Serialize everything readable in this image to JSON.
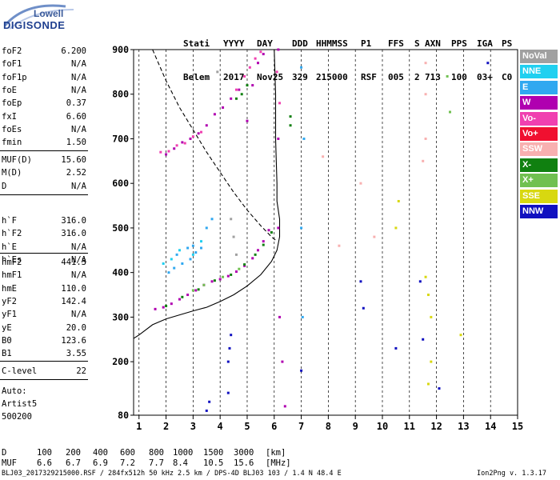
{
  "logo": {
    "line1": "Lowell",
    "line2": "DIGISONDE"
  },
  "header": {
    "row1": [
      "Stati",
      "YYYY",
      "DAY",
      "DDD",
      "HHMMSS",
      "P1",
      "FFS",
      "S",
      "AXN",
      "PPS",
      "IGA",
      "PS"
    ],
    "row2": [
      "Belem",
      "2017",
      "Nov25",
      "329",
      "215000",
      "RSF",
      "005",
      "2",
      "713",
      "100",
      "03+",
      "C0"
    ]
  },
  "params_group1": [
    {
      "key": "foF2",
      "value": "6.200"
    },
    {
      "key": "foF1",
      "value": "N/A"
    },
    {
      "key": "foF1p",
      "value": "N/A"
    },
    {
      "key": "foE",
      "value": "N/A"
    },
    {
      "key": "foEp",
      "value": "0.37"
    },
    {
      "key": "fxI",
      "value": "6.60"
    },
    {
      "key": "foEs",
      "value": "N/A"
    },
    {
      "key": "fmin",
      "value": "1.50"
    }
  ],
  "params_group2": [
    {
      "key": "MUF(D)",
      "value": "15.60"
    },
    {
      "key": "M(D)",
      "value": "2.52"
    },
    {
      "key": "D",
      "value": "N/A"
    }
  ],
  "params_group3": [
    {
      "key": "h`F",
      "value": "316.0"
    },
    {
      "key": "h`F2",
      "value": "316.0"
    },
    {
      "key": "h`E",
      "value": "N/A"
    },
    {
      "key": "h`Es",
      "value": "N/A"
    }
  ],
  "params_group4": [
    {
      "key": "hmF2",
      "value": "441.3"
    },
    {
      "key": "hmF1",
      "value": "N/A"
    },
    {
      "key": "hmE",
      "value": "110.0"
    },
    {
      "key": "yF2",
      "value": "142.4"
    },
    {
      "key": "yF1",
      "value": "N/A"
    },
    {
      "key": "yE",
      "value": "20.0"
    },
    {
      "key": "B0",
      "value": "123.6"
    },
    {
      "key": "B1",
      "value": "3.55"
    }
  ],
  "params_group5": [
    {
      "key": "C-level",
      "value": "22"
    }
  ],
  "auto": {
    "line1": "Auto:",
    "line2": "Artist5",
    "line3": "500200"
  },
  "legend": [
    {
      "label": "NoVal",
      "color": "#a0a0a0"
    },
    {
      "label": "NNE",
      "color": "#20d0f0"
    },
    {
      "label": "E",
      "color": "#30a8f0"
    },
    {
      "label": "W",
      "color": "#b000b0"
    },
    {
      "label": "Vo-",
      "color": "#f040b0"
    },
    {
      "label": "Vo+",
      "color": "#f01030"
    },
    {
      "label": "SSW",
      "color": "#f8b0b0"
    },
    {
      "label": "X-",
      "color": "#108010"
    },
    {
      "label": "X+",
      "color": "#70c050"
    },
    {
      "label": "SSE",
      "color": "#d8d810"
    },
    {
      "label": "NNW",
      "color": "#1010c0"
    }
  ],
  "chart_data": {
    "type": "scatter",
    "xlim": [
      0.8,
      15
    ],
    "ylim": [
      80,
      900
    ],
    "x_ticks": [
      1,
      2,
      3,
      4,
      5,
      6,
      7,
      8,
      9,
      10,
      11,
      12,
      13,
      14,
      15
    ],
    "y_ticks": [
      80,
      200,
      300,
      400,
      500,
      600,
      700,
      800,
      900
    ],
    "grid": "dashed vertical lines",
    "series": [
      {
        "color": "#b000b0",
        "points": [
          [
            1.6,
            318
          ],
          [
            1.9,
            322
          ],
          [
            2.2,
            330
          ],
          [
            2.5,
            340
          ],
          [
            2.8,
            350
          ],
          [
            3.1,
            360
          ],
          [
            3.4,
            372
          ],
          [
            3.7,
            380
          ],
          [
            4.0,
            385
          ],
          [
            4.3,
            392
          ],
          [
            4.6,
            402
          ],
          [
            4.9,
            415
          ],
          [
            5.2,
            432
          ],
          [
            5.4,
            450
          ],
          [
            5.6,
            470
          ],
          [
            5.8,
            495
          ],
          [
            5.0,
            740
          ],
          [
            5.2,
            820
          ],
          [
            5.4,
            870
          ],
          [
            5.6,
            890
          ],
          [
            2.0,
            665
          ],
          [
            2.3,
            678
          ],
          [
            2.6,
            692
          ],
          [
            2.9,
            700
          ],
          [
            3.2,
            712
          ],
          [
            3.5,
            730
          ],
          [
            3.8,
            755
          ],
          [
            4.1,
            770
          ],
          [
            4.4,
            790
          ],
          [
            4.7,
            810
          ],
          [
            6.15,
            900
          ],
          [
            6.15,
            700
          ],
          [
            6.15,
            500
          ],
          [
            6.2,
            300
          ],
          [
            6.3,
            200
          ],
          [
            6.4,
            100
          ]
        ]
      },
      {
        "color": "#f040b0",
        "points": [
          [
            1.8,
            670
          ],
          [
            2.1,
            672
          ],
          [
            2.4,
            685
          ],
          [
            2.7,
            690
          ],
          [
            3.0,
            705
          ],
          [
            3.3,
            715
          ],
          [
            4.6,
            810
          ],
          [
            4.9,
            840
          ],
          [
            5.1,
            860
          ],
          [
            5.3,
            880
          ],
          [
            5.5,
            895
          ],
          [
            6.1,
            850
          ],
          [
            6.2,
            780
          ]
        ]
      },
      {
        "color": "#108010",
        "points": [
          [
            2.0,
            325
          ],
          [
            2.6,
            345
          ],
          [
            3.2,
            362
          ],
          [
            3.8,
            382
          ],
          [
            4.4,
            395
          ],
          [
            4.9,
            418
          ],
          [
            5.3,
            440
          ],
          [
            5.6,
            462
          ],
          [
            5.9,
            490
          ],
          [
            4.6,
            790
          ],
          [
            4.8,
            800
          ],
          [
            5.0,
            820
          ],
          [
            6.6,
            750
          ],
          [
            6.6,
            730
          ]
        ]
      },
      {
        "color": "#30a8f0",
        "points": [
          [
            2.1,
            400
          ],
          [
            2.3,
            410
          ],
          [
            2.6,
            420
          ],
          [
            2.9,
            430
          ],
          [
            3.1,
            445
          ],
          [
            3.3,
            455
          ],
          [
            2.4,
            440
          ],
          [
            2.8,
            455
          ],
          [
            3.0,
            460
          ],
          [
            3.5,
            500
          ],
          [
            3.7,
            520
          ],
          [
            7.0,
            860
          ],
          [
            7.1,
            700
          ],
          [
            7.0,
            500
          ],
          [
            7.05,
            300
          ]
        ]
      },
      {
        "color": "#20d0f0",
        "points": [
          [
            1.9,
            420
          ],
          [
            2.2,
            430
          ],
          [
            2.5,
            450
          ],
          [
            3.0,
            440
          ],
          [
            3.3,
            470
          ]
        ]
      },
      {
        "color": "#1010c0",
        "points": [
          [
            4.3,
            200
          ],
          [
            4.35,
            230
          ],
          [
            4.4,
            260
          ],
          [
            4.3,
            130
          ],
          [
            3.6,
            110
          ],
          [
            3.5,
            90
          ],
          [
            7.0,
            180
          ],
          [
            9.2,
            380
          ],
          [
            9.3,
            320
          ],
          [
            10.5,
            230
          ],
          [
            11.4,
            380
          ],
          [
            11.5,
            250
          ],
          [
            12.1,
            140
          ],
          [
            13.9,
            870
          ]
        ]
      },
      {
        "color": "#d8d810",
        "points": [
          [
            10.6,
            560
          ],
          [
            10.5,
            500
          ],
          [
            11.6,
            390
          ],
          [
            11.7,
            350
          ],
          [
            11.8,
            300
          ],
          [
            11.8,
            200
          ],
          [
            11.7,
            150
          ],
          [
            12.9,
            260
          ]
        ]
      },
      {
        "color": "#f8b0b0",
        "points": [
          [
            7.8,
            660
          ],
          [
            8.4,
            460
          ],
          [
            9.2,
            600
          ],
          [
            9.7,
            480
          ],
          [
            11.6,
            870
          ],
          [
            11.6,
            800
          ],
          [
            11.6,
            700
          ],
          [
            11.5,
            650
          ]
        ]
      },
      {
        "color": "#a0a0a0",
        "points": [
          [
            3.9,
            850
          ],
          [
            4.4,
            520
          ],
          [
            4.5,
            480
          ],
          [
            4.6,
            440
          ]
        ]
      },
      {
        "color": "#70c050",
        "points": [
          [
            3.0,
            360
          ],
          [
            3.4,
            372
          ],
          [
            4.1,
            390
          ],
          [
            4.7,
            408
          ],
          [
            12.4,
            840
          ],
          [
            12.5,
            760
          ]
        ]
      }
    ],
    "curves": [
      {
        "style": "solid",
        "points": [
          [
            0.8,
            252
          ],
          [
            1.0,
            260
          ],
          [
            1.5,
            283
          ],
          [
            2.0,
            296
          ],
          [
            2.5,
            305
          ],
          [
            3.0,
            314
          ],
          [
            3.5,
            322
          ],
          [
            4.0,
            335
          ],
          [
            4.5,
            350
          ],
          [
            5.0,
            370
          ],
          [
            5.5,
            395
          ],
          [
            5.9,
            425
          ],
          [
            6.1,
            450
          ],
          [
            6.2,
            480
          ],
          [
            6.2,
            520
          ],
          [
            6.1,
            560
          ],
          [
            6.1,
            600
          ],
          [
            6.05,
            700
          ],
          [
            6.05,
            800
          ],
          [
            6.0,
            900
          ]
        ]
      },
      {
        "style": "dashed",
        "points": [
          [
            1.5,
            900
          ],
          [
            2.0,
            830
          ],
          [
            2.5,
            770
          ],
          [
            3.0,
            720
          ],
          [
            3.5,
            670
          ],
          [
            4.0,
            625
          ],
          [
            4.5,
            580
          ],
          [
            5.0,
            540
          ],
          [
            5.5,
            505
          ],
          [
            5.9,
            480
          ],
          [
            6.1,
            470
          ]
        ]
      }
    ]
  },
  "bottom": {
    "d_label": "D",
    "d_values": [
      "100",
      "200",
      "400",
      "600",
      "800",
      "1000",
      "1500",
      "3000",
      "[km]"
    ],
    "muf_label": "MUF",
    "muf_values": [
      "6.6",
      "6.7",
      "6.9",
      "7.2",
      "7.7",
      "8.4",
      "10.5",
      "15.6",
      "[MHz]"
    ]
  },
  "footer": {
    "left": "BLJ03_2017329215000.RSF / 284fx512h 50 kHz 2.5 km / DPS-4D BLJ03 103 / 1.4 N 48.4 E",
    "right": "Ion2Png v. 1.3.17"
  }
}
